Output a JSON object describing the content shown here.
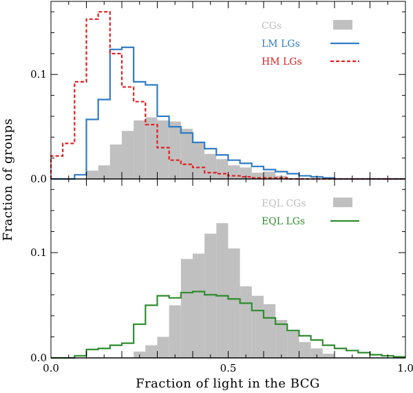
{
  "chart_data": [
    {
      "type": "histogram",
      "panel": "top",
      "xlim": [
        0.0,
        1.0
      ],
      "ylim": [
        0.0,
        0.17
      ],
      "bin_width": 0.03333,
      "ytick_values": [
        0.0,
        0.1
      ],
      "ytick_labels": [
        "0.0",
        "0.1"
      ],
      "legend": {
        "placement": "top-right"
      },
      "series": [
        {
          "name": "CGs",
          "style": "filled-bars",
          "color": "#c0c0c0",
          "values": [
            0.0,
            0.0,
            0.0,
            0.008,
            0.013,
            0.033,
            0.046,
            0.056,
            0.059,
            0.056,
            0.055,
            0.048,
            0.035,
            0.024,
            0.019,
            0.013,
            0.011,
            0.006,
            0.007,
            0.003,
            0.0,
            0.0,
            0.0,
            0.0,
            0.0,
            0.0,
            0.0,
            0.0,
            0.0,
            0.0
          ]
        },
        {
          "name": "LM LGs",
          "style": "step",
          "color": "#2f7bc4",
          "values": [
            0.0,
            0.0,
            0.004,
            0.057,
            0.076,
            0.124,
            0.126,
            0.093,
            0.09,
            0.06,
            0.05,
            0.044,
            0.035,
            0.029,
            0.023,
            0.018,
            0.015,
            0.012,
            0.009,
            0.007,
            0.005,
            0.003,
            0.002,
            0.001,
            0.0,
            0.0,
            0.0,
            0.0,
            0.0,
            0.0
          ]
        },
        {
          "name": "HM LGs",
          "style": "dashed-step",
          "color": "#e02020",
          "values": [
            0.022,
            0.034,
            0.093,
            0.153,
            0.16,
            0.12,
            0.088,
            0.074,
            0.052,
            0.03,
            0.018,
            0.014,
            0.011,
            0.006,
            0.005,
            0.003,
            0.002,
            0.001,
            0.001,
            0.001,
            0.0,
            0.0,
            0.0,
            0.0,
            0.0,
            0.0,
            0.0,
            0.0,
            0.0,
            0.0
          ]
        }
      ]
    },
    {
      "type": "histogram",
      "panel": "bottom",
      "xlim": [
        0.0,
        1.0
      ],
      "ylim": [
        0.0,
        0.17
      ],
      "bin_width": 0.03333,
      "ytick_values": [
        0.0,
        0.1
      ],
      "ytick_labels": [
        "0.0",
        "0.1"
      ],
      "legend": {
        "placement": "top-right"
      },
      "series": [
        {
          "name": "EQL CGs",
          "style": "filled-bars",
          "color": "#c0c0c0",
          "values": [
            0.0,
            0.0,
            0.0,
            0.0,
            0.0,
            0.0,
            0.0,
            0.006,
            0.012,
            0.02,
            0.05,
            0.094,
            0.099,
            0.118,
            0.128,
            0.104,
            0.068,
            0.059,
            0.051,
            0.036,
            0.025,
            0.015,
            0.009,
            0.004,
            0.0,
            0.0,
            0.0,
            0.0,
            0.0,
            0.0
          ]
        },
        {
          "name": "EQL LGs",
          "style": "step",
          "color": "#2e8b2e",
          "values": [
            0.0,
            0.0,
            0.002,
            0.008,
            0.009,
            0.012,
            0.014,
            0.032,
            0.05,
            0.059,
            0.057,
            0.062,
            0.063,
            0.06,
            0.059,
            0.056,
            0.052,
            0.045,
            0.038,
            0.032,
            0.026,
            0.021,
            0.017,
            0.012,
            0.009,
            0.007,
            0.005,
            0.003,
            0.002,
            0.001
          ]
        }
      ]
    }
  ],
  "axes": {
    "xlabel": "Fraction of light in the BCG",
    "ylabel": "Fraction of groups",
    "xtick_labels": [
      "0.0",
      "0.5",
      "1.0"
    ],
    "xtick_values": [
      0.0,
      0.5,
      1.0
    ]
  }
}
